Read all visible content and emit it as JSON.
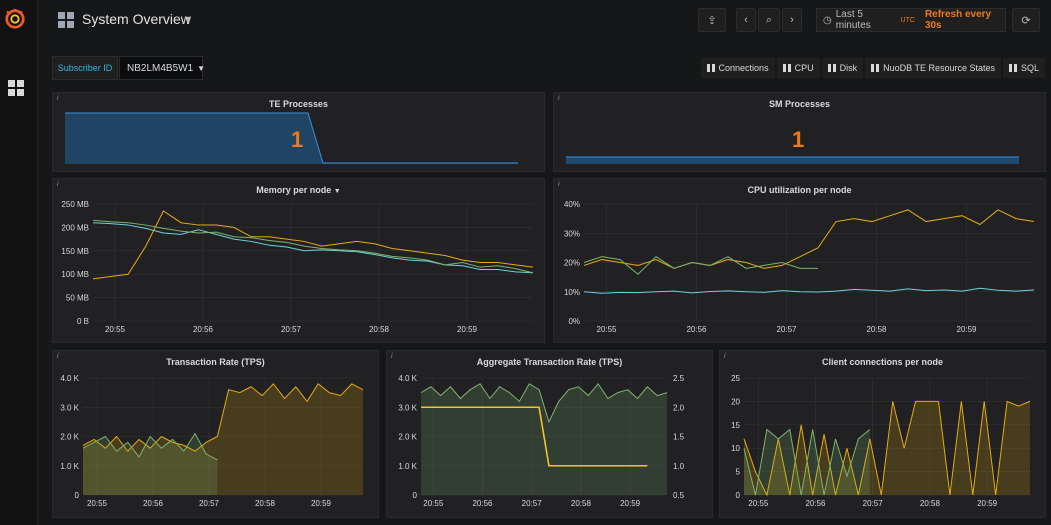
{
  "nav": {
    "title": "System Overview",
    "time_range": "Last 5 minutes",
    "timezone": "UTC",
    "refresh": "Refresh every 30s"
  },
  "vars": {
    "label": "Subscriber ID",
    "value": "NB2LM4B5W1"
  },
  "links": [
    "Connections",
    "CPU",
    "Disk",
    "NuoDB TE Resource States",
    "SQL"
  ],
  "panels": {
    "te": {
      "title": "TE Processes",
      "value": "1"
    },
    "sm": {
      "title": "SM Processes",
      "value": "1"
    },
    "memory": {
      "title": "Memory per node",
      "yticks": [
        "250 MB",
        "200 MB",
        "150 MB",
        "100 MB",
        "50 MB",
        "0 B"
      ]
    },
    "cpu": {
      "title": "CPU utilization per node",
      "yticks": [
        "40%",
        "30%",
        "20%",
        "10%",
        "0%"
      ]
    },
    "tps": {
      "title": "Transaction Rate (TPS)",
      "yticks": [
        "4.0 K",
        "3.0 K",
        "2.0 K",
        "1.0 K",
        "0"
      ]
    },
    "agg": {
      "title": "Aggregate Transaction Rate (TPS)",
      "yticks": [
        "4.0 K",
        "3.0 K",
        "2.0 K",
        "1.0 K",
        "0"
      ],
      "y2ticks": [
        "2.5",
        "2.0",
        "1.5",
        "1.0",
        "0.5"
      ]
    },
    "conn": {
      "title": "Client connections per node",
      "yticks": [
        "25",
        "20",
        "15",
        "10",
        "5",
        "0"
      ]
    }
  },
  "xticks": [
    "20:55",
    "20:56",
    "20:57",
    "20:58",
    "20:59"
  ],
  "colors": {
    "accent": "#eb7b18",
    "blue": "#6ed0e0",
    "yellow": "#e5ac0e",
    "green": "#7eb26d",
    "bg": "#161719",
    "panel": "#212124"
  },
  "chart_data": [
    {
      "type": "line",
      "title": "Memory per node",
      "ylim": [
        0,
        250
      ],
      "xlabel": "",
      "ylabel": "",
      "x_ticks": [
        "20:55",
        "20:56",
        "20:57",
        "20:58",
        "20:59"
      ],
      "series": [
        {
          "values": [
            210,
            208,
            205,
            198,
            188,
            185,
            195,
            185,
            175,
            170,
            162,
            158,
            150,
            152,
            150,
            148,
            142,
            135,
            130,
            128,
            120,
            118,
            110,
            110,
            105,
            103
          ]
        },
        {
          "values": [
            90,
            95,
            100,
            160,
            235,
            210,
            205,
            205,
            200,
            180,
            180,
            175,
            170,
            160,
            165,
            170,
            165,
            155,
            150,
            145,
            140,
            130,
            125,
            125,
            120,
            115
          ]
        },
        {
          "values": [
            215,
            212,
            210,
            205,
            198,
            192,
            188,
            190,
            180,
            178,
            172,
            168,
            160,
            155,
            152,
            150,
            145,
            138,
            135,
            130,
            120,
            125,
            115,
            118,
            112,
            103
          ]
        }
      ]
    },
    {
      "type": "line",
      "title": "CPU utilization per node",
      "ylim": [
        0,
        40
      ],
      "xlabel": "",
      "ylabel": "",
      "x_ticks": [
        "20:55",
        "20:56",
        "20:57",
        "20:58",
        "20:59"
      ],
      "series": [
        {
          "values": [
            10,
            9.5,
            9.8,
            9.7,
            10,
            10.2,
            9.6,
            10.1,
            10.3,
            10,
            9.8,
            10.4,
            10,
            9.9,
            10.2,
            10.8,
            10.5,
            10.2,
            11,
            10.4,
            10.6,
            10.2,
            11.2,
            10.5,
            10.2,
            10.6
          ]
        },
        {
          "values": [
            19,
            21,
            20,
            19,
            21,
            18,
            20,
            19,
            21,
            20,
            18,
            19,
            22,
            25,
            34,
            35,
            34,
            36,
            38,
            34,
            35,
            36,
            33,
            38,
            35,
            34
          ]
        },
        {
          "values": [
            20,
            22,
            21,
            16,
            22,
            18,
            20,
            19,
            22,
            18,
            19,
            20,
            18,
            18
          ]
        }
      ]
    },
    {
      "type": "area",
      "title": "Transaction Rate (TPS)",
      "ylim": [
        0,
        4000
      ],
      "xlabel": "",
      "ylabel": "",
      "x_ticks": [
        "20:55",
        "20:56",
        "20:57",
        "20:58",
        "20:59"
      ],
      "series": [
        {
          "values": [
            1700,
            1900,
            1600,
            2000,
            1500,
            1900,
            1600,
            2000,
            1800,
            1700,
            1500,
            1800,
            2000,
            3600,
            3500,
            3700,
            3400,
            3800,
            3300,
            3700,
            3200,
            3800,
            3500,
            3400,
            3800,
            3600
          ]
        },
        {
          "values": [
            1600,
            1800,
            2000,
            1500,
            1800,
            1300,
            2000,
            1600,
            1900,
            1500,
            2100,
            1400,
            1200
          ]
        }
      ]
    },
    {
      "type": "line",
      "title": "Aggregate Transaction Rate (TPS)",
      "ylim": [
        0,
        4000
      ],
      "y2lim": [
        0.5,
        2.5
      ],
      "xlabel": "",
      "ylabel": "",
      "x_ticks": [
        "20:55",
        "20:56",
        "20:57",
        "20:58",
        "20:59"
      ],
      "series": [
        {
          "values": [
            3500,
            3700,
            3400,
            3700,
            3300,
            3600,
            3800,
            3300,
            3700,
            3500,
            3200,
            3800,
            3600,
            2500,
            3200,
            3600,
            3700,
            3400,
            3800,
            3300,
            3500,
            3600,
            3300,
            3700,
            3400,
            3500
          ]
        },
        {
          "axis": "right",
          "values": [
            2.0,
            2.0,
            2.0,
            2.0,
            2.0,
            2.0,
            2.0,
            2.0,
            2.0,
            2.0,
            2.0,
            2.0,
            2.0,
            1.0,
            1.0,
            1.0,
            1.0,
            1.0,
            1.0,
            1.0,
            1.0,
            1.0,
            1.0,
            1.0
          ]
        }
      ]
    },
    {
      "type": "area",
      "title": "Client connections per node",
      "ylim": [
        0,
        25
      ],
      "xlabel": "",
      "ylabel": "",
      "x_ticks": [
        "20:55",
        "20:56",
        "20:57",
        "20:58",
        "20:59"
      ],
      "series": [
        {
          "values": [
            12,
            5,
            0,
            12,
            0,
            15,
            0,
            13,
            0,
            10,
            0,
            12,
            0,
            20,
            10,
            20,
            20,
            20,
            0,
            20,
            0,
            20,
            0,
            20,
            19,
            20
          ]
        },
        {
          "values": [
            10,
            0,
            14,
            12,
            14,
            0,
            14,
            0,
            12,
            4,
            12,
            14
          ]
        }
      ]
    }
  ]
}
